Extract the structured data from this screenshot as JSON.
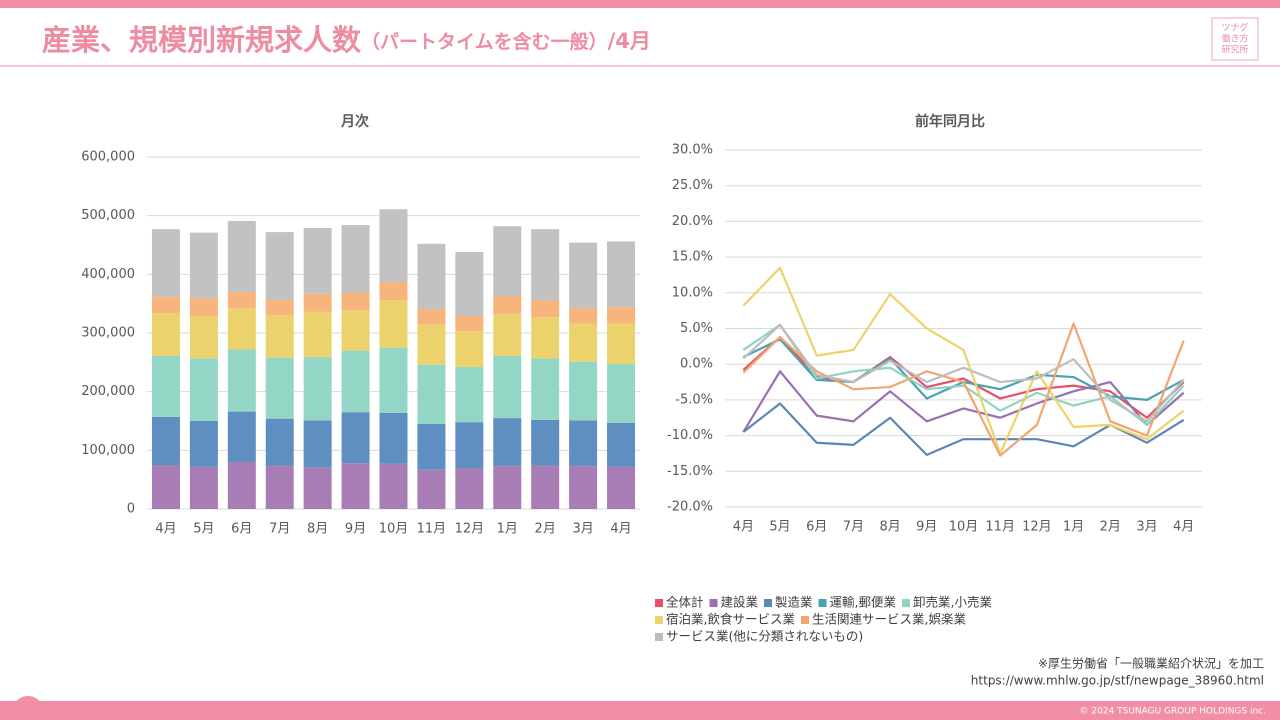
{
  "header": {
    "title": "産業、規模別新規求人数",
    "title_note": "（パートタイムを含む一般）",
    "title_suffix": "/4月",
    "logo": [
      "ツナグ",
      "働き方",
      "研究所"
    ]
  },
  "chart_data": [
    {
      "type": "bar",
      "stacked": true,
      "title": "月次",
      "categories": [
        "4月",
        "5月",
        "6月",
        "7月",
        "8月",
        "9月",
        "10月",
        "11月",
        "12月",
        "1月",
        "2月",
        "3月",
        "4月"
      ],
      "series": [
        {
          "color": "#a87cb4",
          "values": [
            75000,
            72000,
            80000,
            74000,
            71000,
            78000,
            77000,
            67000,
            70000,
            73000,
            74000,
            73000,
            72000
          ]
        },
        {
          "color": "#5f8ec0",
          "values": [
            82000,
            78000,
            86000,
            80000,
            80000,
            87000,
            87000,
            78000,
            78000,
            82000,
            78000,
            78000,
            75000
          ]
        },
        {
          "color": "#93d6c6",
          "values": [
            104000,
            107000,
            106000,
            104000,
            108000,
            105000,
            111000,
            101000,
            94000,
            106000,
            105000,
            100000,
            100000
          ]
        },
        {
          "color": "#ebd26c",
          "values": [
            73000,
            72000,
            70000,
            72000,
            77000,
            69000,
            81000,
            68000,
            61000,
            71000,
            70000,
            65000,
            69000
          ]
        },
        {
          "color": "#f7b47c",
          "values": [
            28000,
            30000,
            28000,
            26000,
            31000,
            30000,
            31000,
            27000,
            26000,
            31000,
            29000,
            26000,
            28000
          ]
        },
        {
          "color": "#c2c2c2",
          "values": [
            115000,
            112000,
            121000,
            116000,
            112000,
            115000,
            124000,
            111000,
            109000,
            119000,
            121000,
            112000,
            112000
          ]
        }
      ],
      "ylim": [
        0,
        600000
      ],
      "yticks": [
        0,
        {
          "value": 100000,
          "label": "100,000"
        },
        {
          "value": 200000,
          "label": "200,000"
        },
        {
          "value": 300000,
          "label": "300,000"
        },
        {
          "value": 400000,
          "label": "400,000"
        },
        {
          "value": 500000,
          "label": "500,000"
        },
        {
          "value": 600000,
          "label": "600,000"
        }
      ],
      "grid": true
    },
    {
      "type": "line",
      "title": "前年同月比",
      "categories": [
        "4月",
        "5月",
        "6月",
        "7月",
        "8月",
        "9月",
        "10月",
        "11月",
        "12月",
        "1月",
        "2月",
        "3月",
        "4月"
      ],
      "series": [
        {
          "name": "全体計",
          "color": "#e8506a",
          "values": [
            -0.8,
            3.8,
            -1.8,
            -2.5,
            1.0,
            -3.2,
            -2.0,
            -4.8,
            -3.5,
            -3.0,
            -3.8,
            -7.5,
            -2.5
          ]
        },
        {
          "name": "建設業",
          "color": "#9b6fb0",
          "values": [
            -9.5,
            -1.0,
            -7.2,
            -8.0,
            -3.8,
            -8.0,
            -6.2,
            -7.5,
            -5.5,
            -3.8,
            -2.5,
            -8.5,
            -4.0
          ]
        },
        {
          "name": "製造業",
          "color": "#5b86b8",
          "values": [
            -9.5,
            -5.5,
            -11.0,
            -11.3,
            -7.5,
            -12.7,
            -10.5,
            -10.5,
            -10.5,
            -11.5,
            -8.5,
            -11.0,
            -7.8
          ]
        },
        {
          "name": "運輸,郵便業",
          "color": "#4aa3b0",
          "values": [
            1.0,
            3.5,
            -2.2,
            -2.5,
            0.8,
            -4.8,
            -2.5,
            -3.5,
            -1.5,
            -1.8,
            -4.5,
            -5.0,
            -2.2
          ]
        },
        {
          "name": "卸売業,小売業",
          "color": "#8fd3c4",
          "values": [
            2.0,
            5.5,
            -2.0,
            -1.0,
            -0.5,
            -3.5,
            -3.0,
            -6.5,
            -4.0,
            -5.8,
            -4.5,
            -8.5,
            -3.0
          ]
        },
        {
          "name": "宿泊業,飲食サービス業",
          "color": "#ecd36b",
          "values": [
            8.2,
            13.5,
            1.2,
            2.0,
            9.8,
            5.0,
            2.0,
            -12.5,
            -1.0,
            -8.8,
            -8.5,
            -10.5,
            -6.5
          ]
        },
        {
          "name": "生活関連サービス業,娯楽業",
          "color": "#f3a56f",
          "values": [
            -1.2,
            3.8,
            -1.0,
            -3.5,
            -3.2,
            -1.0,
            -2.5,
            -12.8,
            -8.5,
            5.7,
            -8.0,
            -10.0,
            3.3
          ]
        },
        {
          "name": "サービス業(他に分類されないもの)",
          "color": "#bdbdbd",
          "values": [
            0.8,
            5.5,
            -1.5,
            -2.5,
            0.5,
            -2.5,
            -0.5,
            -2.5,
            -2.0,
            0.7,
            -5.0,
            -8.0,
            -2.2
          ]
        }
      ],
      "ylim": [
        -20,
        30
      ],
      "yticks": [
        {
          "value": -20,
          "label": "-20.0%"
        },
        {
          "value": -15,
          "label": "-15.0%"
        },
        {
          "value": -10,
          "label": "-10.0%"
        },
        {
          "value": -5,
          "label": "-5.0%"
        },
        {
          "value": 0,
          "label": "0.0%"
        },
        {
          "value": 5,
          "label": "5.0%"
        },
        {
          "value": 10,
          "label": "10.0%"
        },
        {
          "value": 15,
          "label": "15.0%"
        },
        {
          "value": 20,
          "label": "20.0%"
        },
        {
          "value": 25,
          "label": "25.0%"
        },
        {
          "value": 30,
          "label": "30.0%"
        }
      ],
      "grid": true,
      "legend": "bottom"
    }
  ],
  "source": [
    "※厚生労働省「一般職業紹介状況」を加工",
    "https://www.mhlw.go.jp/stf/newpage_38960.html"
  ],
  "footer": "© 2024 TSUNAGU GROUP HOLDINGS inc."
}
